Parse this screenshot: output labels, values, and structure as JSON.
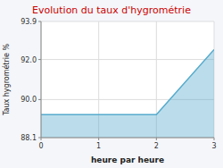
{
  "chart_data": {
    "type": "area",
    "title": "Evolution du taux d'hygrométrie",
    "xlabel": "heure par heure",
    "ylabel": "Taux hygrométrie %",
    "x": [
      0,
      2,
      3
    ],
    "values": [
      89.25,
      89.25,
      92.5
    ],
    "color": "#55aacc",
    "xlim": [
      0,
      3
    ],
    "xticks": [
      0,
      1,
      2,
      3
    ],
    "ylim": [
      88.1,
      93.9
    ],
    "yticks": [
      88.1,
      {
        "value": 90.0,
        "label": "90.0"
      },
      {
        "value": 92.0,
        "label": "92.0"
      },
      93.9
    ],
    "grid": true
  }
}
